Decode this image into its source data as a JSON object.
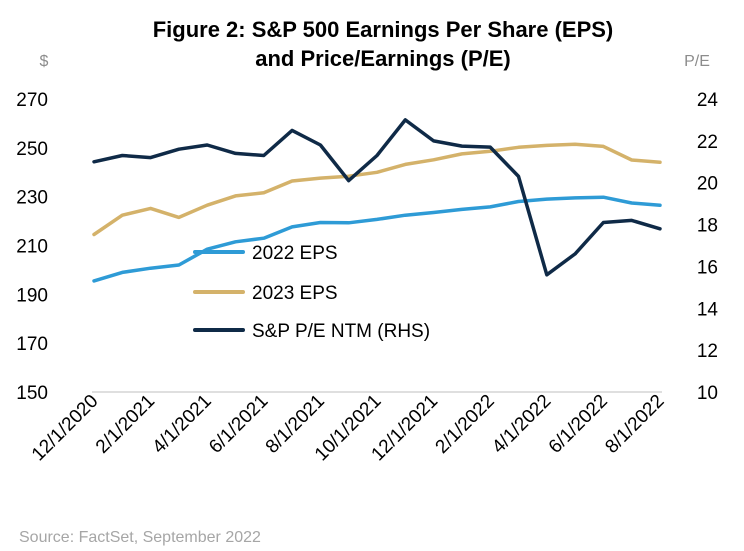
{
  "chart_data": {
    "type": "line",
    "title_lines": [
      "Figure 2: S&P 500 Earnings Per Share (EPS)",
      "and Price/Earnings (P/E)"
    ],
    "y_left_unit": "$",
    "y_right_unit": "P/E",
    "y_left_range": [
      150,
      270
    ],
    "y_left_ticks": [
      "270",
      "250",
      "230",
      "210",
      "190",
      "170",
      "150"
    ],
    "y_right_range": [
      10,
      24
    ],
    "y_right_ticks": [
      "24",
      "22",
      "20",
      "18",
      "16",
      "14",
      "12",
      "10"
    ],
    "x": [
      "12/1/2020",
      "1/1/2021",
      "2/1/2021",
      "3/1/2021",
      "4/1/2021",
      "5/1/2021",
      "6/1/2021",
      "7/1/2021",
      "8/1/2021",
      "9/1/2021",
      "10/1/2021",
      "11/1/2021",
      "12/1/2021",
      "1/1/2022",
      "2/1/2022",
      "3/1/2022",
      "4/1/2022",
      "5/1/2022",
      "6/1/2022",
      "7/1/2022",
      "8/1/2022"
    ],
    "x_tick_labels": [
      "12/1/2020",
      "2/1/2021",
      "4/1/2021",
      "6/1/2021",
      "8/1/2021",
      "10/1/2021",
      "12/1/2021",
      "2/1/2022",
      "4/1/2022",
      "6/1/2022",
      "8/1/2022"
    ],
    "series": [
      {
        "name": "2022 EPS",
        "axis": "left",
        "color": "#2e9bd6",
        "values": [
          195.5,
          199,
          200.7,
          202,
          208.5,
          211.5,
          213,
          217.6,
          219.4,
          219.3,
          220.7,
          222.4,
          223.5,
          224.8,
          225.8,
          228,
          229,
          229.5,
          229.8,
          227.4,
          226.5
        ]
      },
      {
        "name": "2023 EPS",
        "axis": "left",
        "color": "#d4b26a",
        "values": [
          214.5,
          222.4,
          225.2,
          221.5,
          226.5,
          230.3,
          231.6,
          236.4,
          237.6,
          238.4,
          240,
          243.2,
          245.1,
          247.5,
          248.6,
          250.2,
          251,
          251.5,
          250.6,
          245,
          244.1
        ]
      },
      {
        "name": "S&P P/E NTM (RHS)",
        "axis": "right",
        "color": "#0f2a47",
        "values": [
          21.0,
          21.3,
          21.2,
          21.6,
          21.8,
          21.4,
          21.3,
          22.5,
          21.8,
          20.1,
          21.3,
          23.0,
          22.0,
          21.75,
          21.7,
          20.3,
          15.6,
          16.6,
          18.1,
          18.2,
          17.8
        ]
      }
    ],
    "legend_position": "center-left",
    "grid": false
  },
  "source": "Source: FactSet, September 2022"
}
